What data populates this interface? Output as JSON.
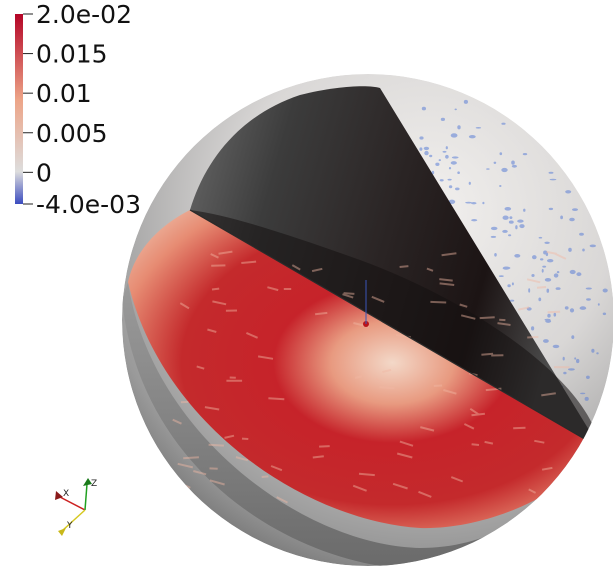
{
  "colorbar": {
    "ticks": [
      {
        "label": "2.0e-02",
        "value": 0.02
      },
      {
        "label": "0.015",
        "value": 0.015
      },
      {
        "label": "0.01",
        "value": 0.01
      },
      {
        "label": "0.005",
        "value": 0.005
      },
      {
        "label": "0",
        "value": 0
      },
      {
        "label": "-4.0e-03",
        "value": -0.004
      }
    ],
    "range": [
      -0.004,
      0.02
    ],
    "colormap": [
      "#3b4cc0",
      "#dddddd",
      "#b40426"
    ]
  },
  "orientation_axes": {
    "x_label": "X",
    "y_label": "Y",
    "z_label": "Z",
    "x_color": "#cc2020",
    "y_color": "#d6c820",
    "z_color": "#20a020"
  },
  "scene": {
    "object": "sphere-clipped-octant",
    "shell_color": "#c9c9c9",
    "cut_face_dark": "#1a1a1a",
    "hot_color": "#b8141c"
  }
}
